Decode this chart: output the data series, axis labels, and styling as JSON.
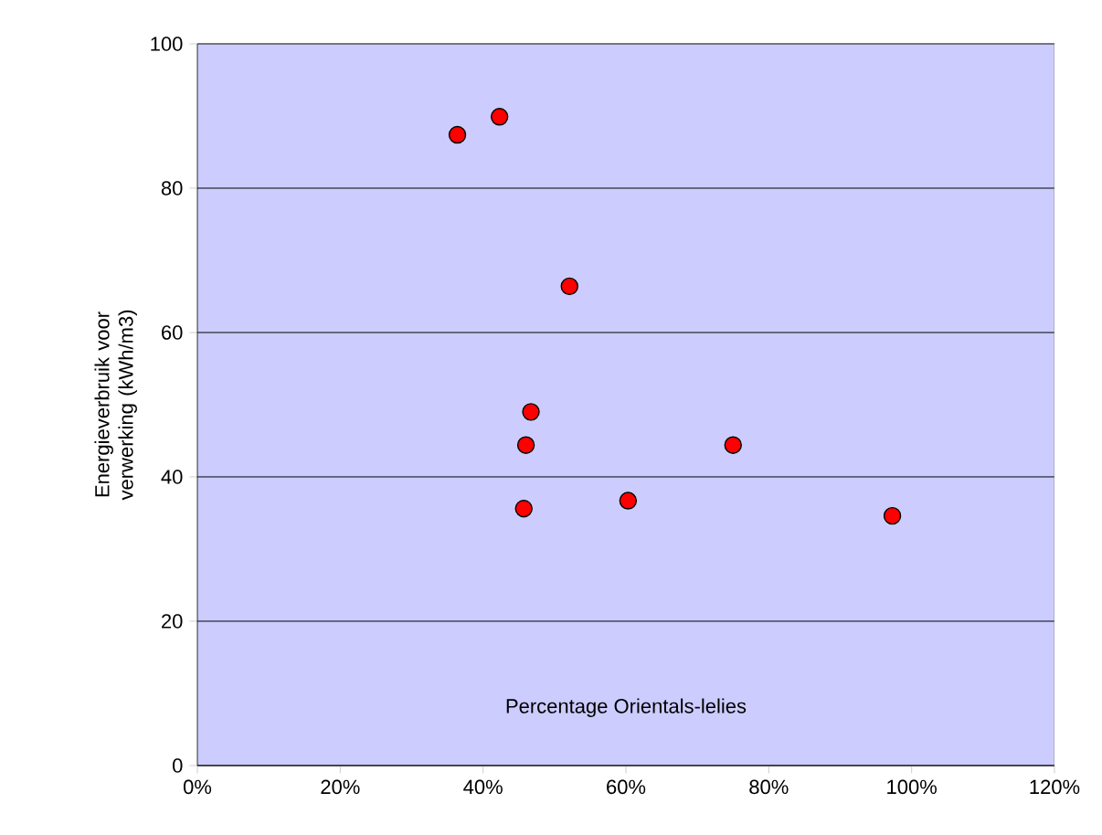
{
  "chart_data": {
    "type": "scatter",
    "xlabel": "Percentage Orientals-lelies",
    "ylabel": "Energieverbruik voor verwerking (kWh/m3)",
    "x": [
      36.4,
      42.3,
      52.1,
      46.7,
      46.0,
      45.7,
      60.3,
      75.0,
      97.3
    ],
    "series": [
      {
        "color": "#ff0000",
        "values": [
          87.4,
          89.9,
          66.4,
          49.0,
          44.4,
          35.6,
          36.7,
          44.4,
          34.6
        ]
      }
    ],
    "xlim": [
      0,
      120
    ],
    "ylim": [
      0,
      100
    ],
    "xticks": [
      {
        "value": 0,
        "label": "0%"
      },
      {
        "value": 20,
        "label": "20%"
      },
      {
        "value": 40,
        "label": "40%"
      },
      {
        "value": 60,
        "label": "60%"
      },
      {
        "value": 80,
        "label": "80%"
      },
      {
        "value": 100,
        "label": "100%"
      },
      {
        "value": 120,
        "label": "120%"
      }
    ],
    "yticks": [
      0,
      20,
      40,
      60,
      80,
      100
    ],
    "grid": "y",
    "marker": "circle"
  }
}
